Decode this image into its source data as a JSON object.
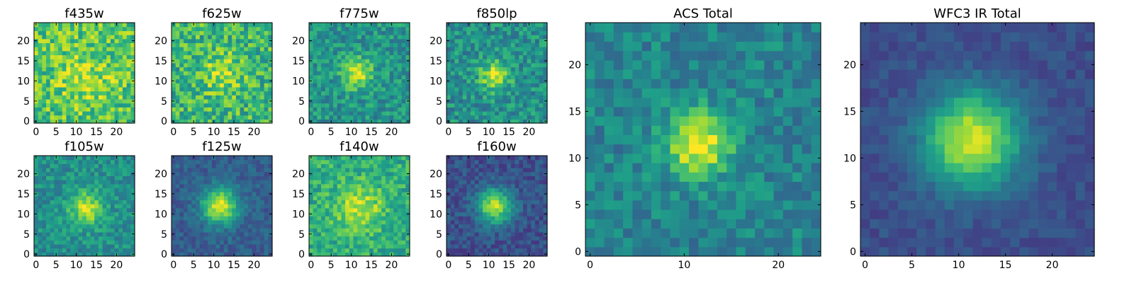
{
  "colors": {
    "colormap": [
      "#440154",
      "#482878",
      "#3e4989",
      "#31688e",
      "#26828e",
      "#1f9e89",
      "#35b779",
      "#6ece58",
      "#b5de2b",
      "#fde725"
    ],
    "frame": "#000000",
    "background": "#ffffff"
  },
  "chart_data": [
    {
      "type": "heatmap",
      "title": "f435w",
      "grid": 25,
      "xticks": [
        0,
        5,
        10,
        15,
        20
      ],
      "yticks": [
        0,
        5,
        10,
        15,
        20
      ],
      "source": {
        "x0": 12,
        "y0": 11,
        "sigma": 5,
        "peak": 0.15,
        "base": 0.72,
        "noise": 0.42,
        "seed": 11
      }
    },
    {
      "type": "heatmap",
      "title": "f625w",
      "grid": 25,
      "xticks": [
        0,
        5,
        10,
        15,
        20
      ],
      "yticks": [
        0,
        5,
        10,
        15,
        20
      ],
      "source": {
        "x0": 12,
        "y0": 12,
        "sigma": 3.5,
        "peak": 0.22,
        "base": 0.66,
        "noise": 0.42,
        "seed": 23
      }
    },
    {
      "type": "heatmap",
      "title": "f775w",
      "grid": 25,
      "xticks": [
        0,
        5,
        10,
        15,
        20
      ],
      "yticks": [
        0,
        5,
        10,
        15,
        20
      ],
      "source": {
        "x0": 11.5,
        "y0": 12,
        "sigma": 2.6,
        "peak": 0.42,
        "base": 0.52,
        "noise": 0.32,
        "seed": 37
      }
    },
    {
      "type": "heatmap",
      "title": "f850lp",
      "grid": 25,
      "xticks": [
        0,
        5,
        10,
        15,
        20
      ],
      "yticks": [
        0,
        5,
        10,
        15,
        20
      ],
      "source": {
        "x0": 11.5,
        "y0": 11.5,
        "sigma": 2.6,
        "peak": 0.42,
        "base": 0.5,
        "noise": 0.34,
        "seed": 41
      }
    },
    {
      "type": "heatmap",
      "title": "ACS Total",
      "grid": 25,
      "xticks": [
        0,
        10,
        20
      ],
      "yticks": [
        0,
        5,
        10,
        15,
        20
      ],
      "source": {
        "x0": 11.5,
        "y0": 11.5,
        "sigma": 2.4,
        "peak": 0.55,
        "base": 0.45,
        "noise": 0.26,
        "seed": 53
      }
    },
    {
      "type": "heatmap",
      "title": "f105w",
      "grid": 25,
      "xticks": [
        0,
        5,
        10,
        15,
        20
      ],
      "yticks": [
        0,
        5,
        10,
        15,
        20
      ],
      "source": {
        "x0": 12.5,
        "y0": 11.5,
        "sigma": 3,
        "peak": 0.4,
        "base": 0.5,
        "noise": 0.26,
        "seed": 67
      }
    },
    {
      "type": "heatmap",
      "title": "f125w",
      "grid": 25,
      "xticks": [
        0,
        5,
        10,
        15,
        20
      ],
      "yticks": [
        0,
        5,
        10,
        15,
        20
      ],
      "source": {
        "x0": 11.5,
        "y0": 12,
        "sigma": 3.2,
        "peak": 0.65,
        "base": 0.3,
        "noise": 0.18,
        "seed": 79
      }
    },
    {
      "type": "heatmap",
      "title": "f140w",
      "grid": 25,
      "xticks": [
        0,
        5,
        10,
        15,
        20
      ],
      "yticks": [
        0,
        5,
        10,
        15,
        20
      ],
      "source": {
        "x0": 12,
        "y0": 11.5,
        "sigma": 4,
        "peak": 0.3,
        "base": 0.62,
        "noise": 0.3,
        "seed": 83
      }
    },
    {
      "type": "heatmap",
      "title": "f160w",
      "grid": 25,
      "xticks": [
        0,
        5,
        10,
        15,
        20
      ],
      "yticks": [
        0,
        5,
        10,
        15,
        20
      ],
      "source": {
        "x0": 11.5,
        "y0": 12,
        "sigma": 3,
        "peak": 0.65,
        "base": 0.25,
        "noise": 0.2,
        "seed": 97
      }
    },
    {
      "type": "heatmap",
      "title": "WFC3 IR Total",
      "grid": 25,
      "xticks": [
        0,
        5,
        10,
        15,
        20
      ],
      "yticks": [
        0,
        5,
        10,
        15,
        20
      ],
      "source": {
        "x0": 11.5,
        "y0": 12,
        "sigma": 3.6,
        "peak": 0.7,
        "base": 0.24,
        "noise": 0.12,
        "seed": 101
      }
    }
  ]
}
